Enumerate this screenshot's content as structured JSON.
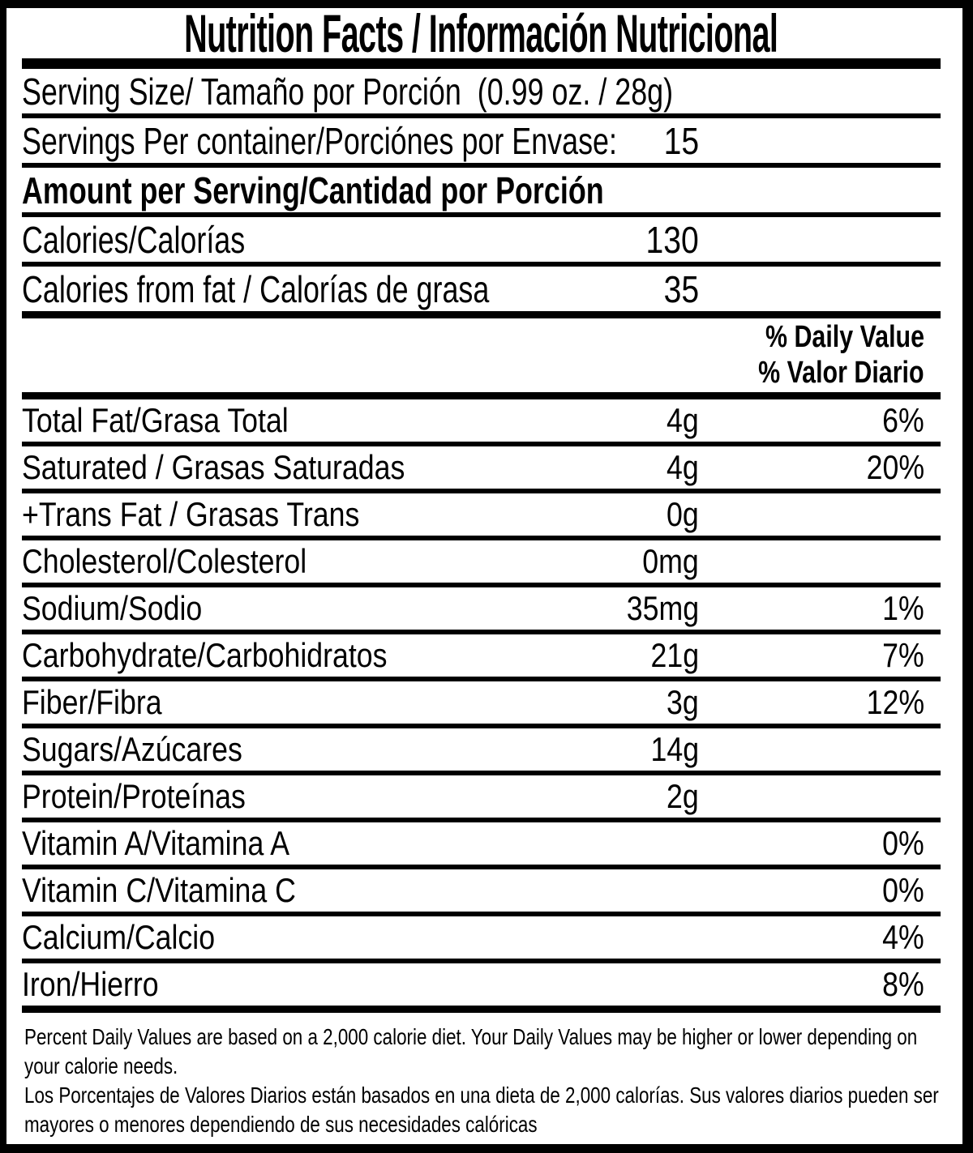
{
  "colors": {
    "ink": "#000000",
    "paper": "#ffffff"
  },
  "label": {
    "title": "Nutrition Facts / Información Nutricional",
    "serving_size_row": {
      "label": "Serving Size/ Tamaño por Porción  (0.99 oz. / 28g)"
    },
    "servings_row": {
      "label": "Servings Per container/Porciónes por Envase:",
      "value": "15"
    },
    "section_header": "Amount per Serving/Cantidad por Porción",
    "calories_row": {
      "label": "Calories/Calorías",
      "value": "130"
    },
    "calories_from_fat_row": {
      "label": "Calories from fat / Calorías de grasa",
      "value": "35"
    },
    "daily_value_header": {
      "line1": "% Daily Value",
      "line2": "% Valor Diario"
    },
    "nutrients": [
      {
        "label": "Total Fat/Grasa Total",
        "amount": "4g",
        "dv": "6%"
      },
      {
        "label": "Saturated / Grasas Saturadas",
        "amount": "4g",
        "dv": "20%"
      },
      {
        "label": "+Trans Fat / Grasas Trans",
        "amount": "0g",
        "dv": ""
      },
      {
        "label": "Cholesterol/Colesterol",
        "amount": "0mg",
        "dv": ""
      },
      {
        "label": "Sodium/Sodio",
        "amount": "35mg",
        "dv": "1%"
      },
      {
        "label": "Carbohydrate/Carbohidratos",
        "amount": "21g",
        "dv": "7%"
      },
      {
        "label": "Fiber/Fibra",
        "amount": "3g",
        "dv": "12%"
      },
      {
        "label": "Sugars/Azúcares",
        "amount": "14g",
        "dv": ""
      },
      {
        "label": "Protein/Proteínas",
        "amount": "2g",
        "dv": ""
      },
      {
        "label": "Vitamin A/Vitamina A",
        "amount": "",
        "dv": "0%"
      },
      {
        "label": "Vitamin C/Vitamina C",
        "amount": "",
        "dv": "0%"
      },
      {
        "label": "Calcium/Calcio",
        "amount": "",
        "dv": "4%"
      },
      {
        "label": "Iron/Hierro",
        "amount": "",
        "dv": "8%"
      }
    ],
    "footnote_en": "Percent Daily Values are based on a 2,000 calorie diet. Your Daily Values may be higher or lower depending on your calorie needs.",
    "footnote_es": "Los Porcentajes de Valores Diarios están basados en una dieta de 2,000 calorías. Sus valores diarios pueden ser mayores o menores dependiendo de sus necesidades calóricas"
  }
}
